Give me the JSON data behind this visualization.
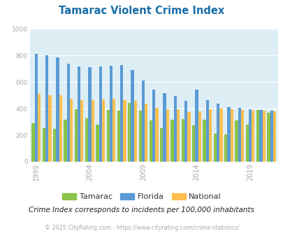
{
  "title": "Tamarac Violent Crime Index",
  "subtitle": "Crime Index corresponds to incidents per 100,000 inhabitants",
  "footer": "© 2025 CityRating.com - https://www.cityrating.com/crime-statistics/",
  "years": [
    1999,
    2000,
    2001,
    2002,
    2003,
    2004,
    2005,
    2006,
    2007,
    2008,
    2009,
    2010,
    2011,
    2012,
    2013,
    2014,
    2015,
    2016,
    2017,
    2018,
    2019,
    2020,
    2021
  ],
  "tamarac": [
    290,
    255,
    250,
    315,
    395,
    325,
    280,
    390,
    385,
    445,
    385,
    310,
    255,
    315,
    320,
    275,
    315,
    210,
    205,
    310,
    280,
    390,
    370
  ],
  "florida": [
    810,
    800,
    785,
    740,
    715,
    710,
    715,
    720,
    725,
    690,
    610,
    545,
    515,
    495,
    460,
    545,
    465,
    435,
    410,
    405,
    395,
    390,
    385
  ],
  "national": [
    510,
    500,
    500,
    475,
    465,
    465,
    470,
    475,
    465,
    460,
    435,
    405,
    395,
    395,
    375,
    380,
    395,
    400,
    395,
    390,
    385,
    385,
    380
  ],
  "tamarac_color": "#8bc34a",
  "florida_color": "#5b9bd5",
  "national_color": "#ffc050",
  "bg_color": "#ddeef5",
  "grid_color": "#ffffff",
  "title_color": "#1a6ea8",
  "ytick_color": "#aaaaaa",
  "xtick_color": "#aaaaaa",
  "subtitle_color": "#222222",
  "footer_color": "#aaaaaa",
  "ylim": [
    0,
    1000
  ],
  "yticks": [
    0,
    200,
    400,
    600,
    800,
    1000
  ],
  "xtick_labels": [
    "1999",
    "2004",
    "2009",
    "2014",
    "2019"
  ],
  "xtick_positions": [
    0,
    5,
    10,
    15,
    20
  ],
  "bar_width": 0.28
}
